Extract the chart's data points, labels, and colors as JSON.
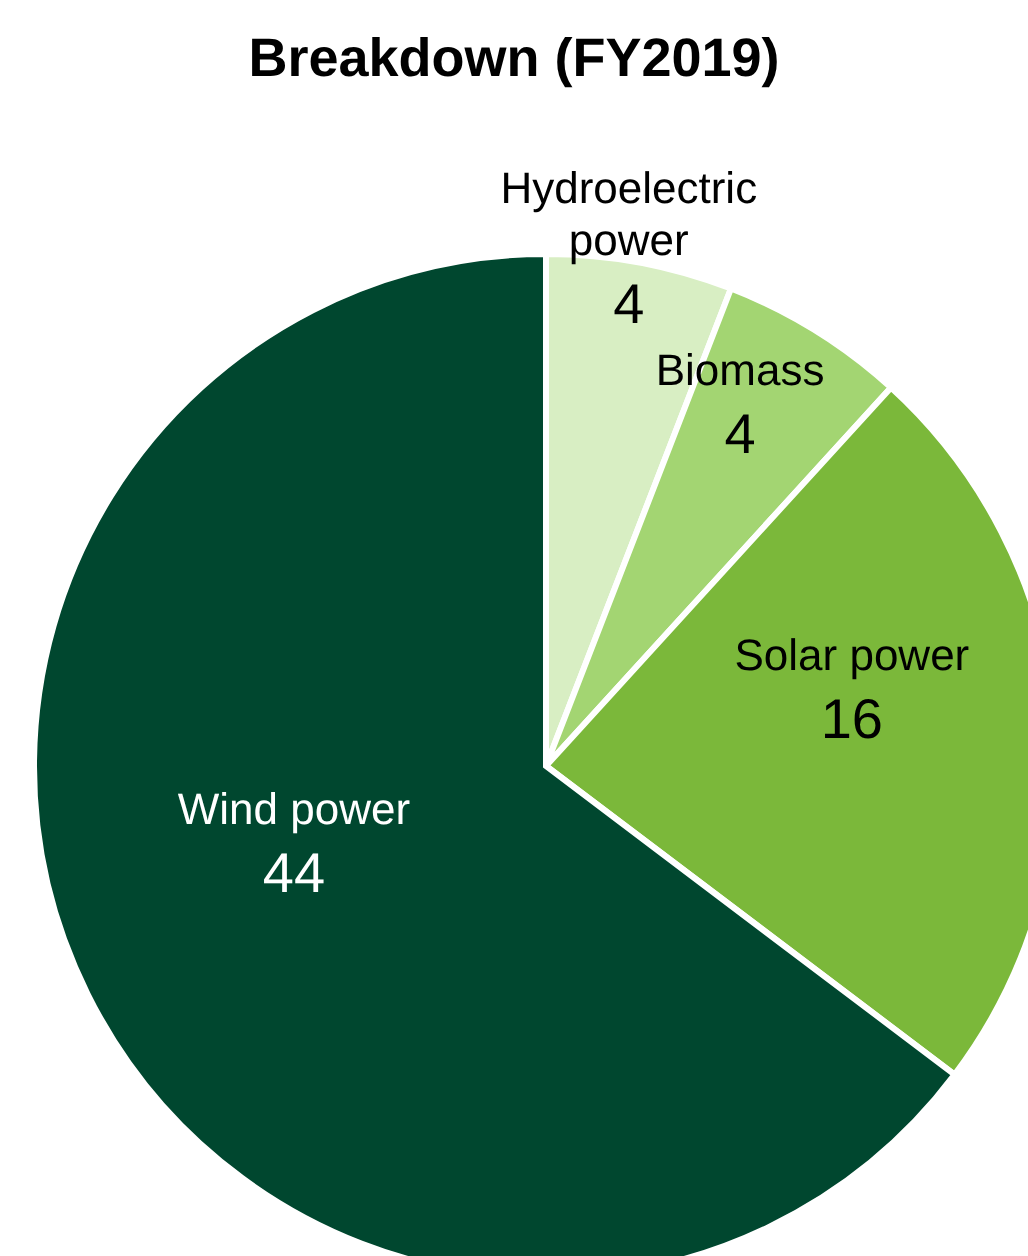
{
  "chart_data": {
    "type": "pie",
    "title": "Breakdown (FY2019)",
    "categories": [
      "Hydroelectric power",
      "Biomass",
      "Solar power",
      "Wind power"
    ],
    "values": [
      4,
      4,
      16,
      44
    ],
    "colors": [
      "#d8eec3",
      "#a3d572",
      "#7bb83a",
      "#00472f"
    ],
    "data_labels": true
  }
}
